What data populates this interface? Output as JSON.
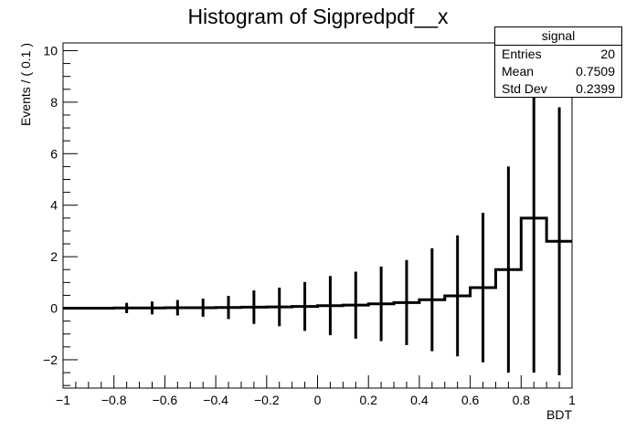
{
  "chart_data": {
    "type": "histogram",
    "title": "Histogram of Sigpredpdf__x",
    "xlabel": "BDT",
    "ylabel": "Events / ( 0.1 )",
    "xlim": [
      -1,
      1
    ],
    "ylim": [
      -3.1,
      10.3
    ],
    "x_ticks": [
      -1,
      -0.8,
      -0.6,
      -0.4,
      -0.2,
      0,
      0.2,
      0.4,
      0.6,
      0.8,
      1
    ],
    "x_tick_labels": [
      "−1",
      "−0.8",
      "−0.6",
      "−0.4",
      "−0.2",
      "0",
      "0.2",
      "0.4",
      "0.6",
      "0.8",
      "1"
    ],
    "y_ticks": [
      -2,
      0,
      2,
      4,
      6,
      8,
      10
    ],
    "y_tick_labels": [
      "−2",
      "0",
      "2",
      "4",
      "6",
      "8",
      "10"
    ],
    "bins": [
      {
        "x": -0.95,
        "value": 0.0,
        "error": 0.0
      },
      {
        "x": -0.85,
        "value": 0.0,
        "error": 0.0
      },
      {
        "x": -0.75,
        "value": 0.01,
        "error": 0.2
      },
      {
        "x": -0.65,
        "value": 0.01,
        "error": 0.25
      },
      {
        "x": -0.55,
        "value": 0.02,
        "error": 0.3
      },
      {
        "x": -0.45,
        "value": 0.02,
        "error": 0.35
      },
      {
        "x": -0.35,
        "value": 0.03,
        "error": 0.45
      },
      {
        "x": -0.25,
        "value": 0.04,
        "error": 0.65
      },
      {
        "x": -0.15,
        "value": 0.05,
        "error": 0.75
      },
      {
        "x": -0.05,
        "value": 0.07,
        "error": 0.95
      },
      {
        "x": 0.05,
        "value": 0.1,
        "error": 1.15
      },
      {
        "x": 0.15,
        "value": 0.12,
        "error": 1.3
      },
      {
        "x": 0.25,
        "value": 0.17,
        "error": 1.45
      },
      {
        "x": 0.35,
        "value": 0.22,
        "error": 1.65
      },
      {
        "x": 0.45,
        "value": 0.33,
        "error": 2.0
      },
      {
        "x": 0.55,
        "value": 0.48,
        "error": 2.35
      },
      {
        "x": 0.65,
        "value": 0.8,
        "error": 2.9
      },
      {
        "x": 0.75,
        "value": 1.5,
        "error": 4.0
      },
      {
        "x": 0.85,
        "value": 3.5,
        "error": 6.0
      },
      {
        "x": 0.95,
        "value": 2.6,
        "error": 5.2
      }
    ],
    "bin_width": 0.1,
    "legend": {
      "title": "signal",
      "rows": [
        {
          "label": "Entries",
          "value": "20"
        },
        {
          "label": "Mean",
          "value": "0.7509"
        },
        {
          "label": "Std Dev",
          "value": "0.2399"
        }
      ],
      "placement": "top-right"
    },
    "grid": false,
    "line_color": "#000000"
  }
}
